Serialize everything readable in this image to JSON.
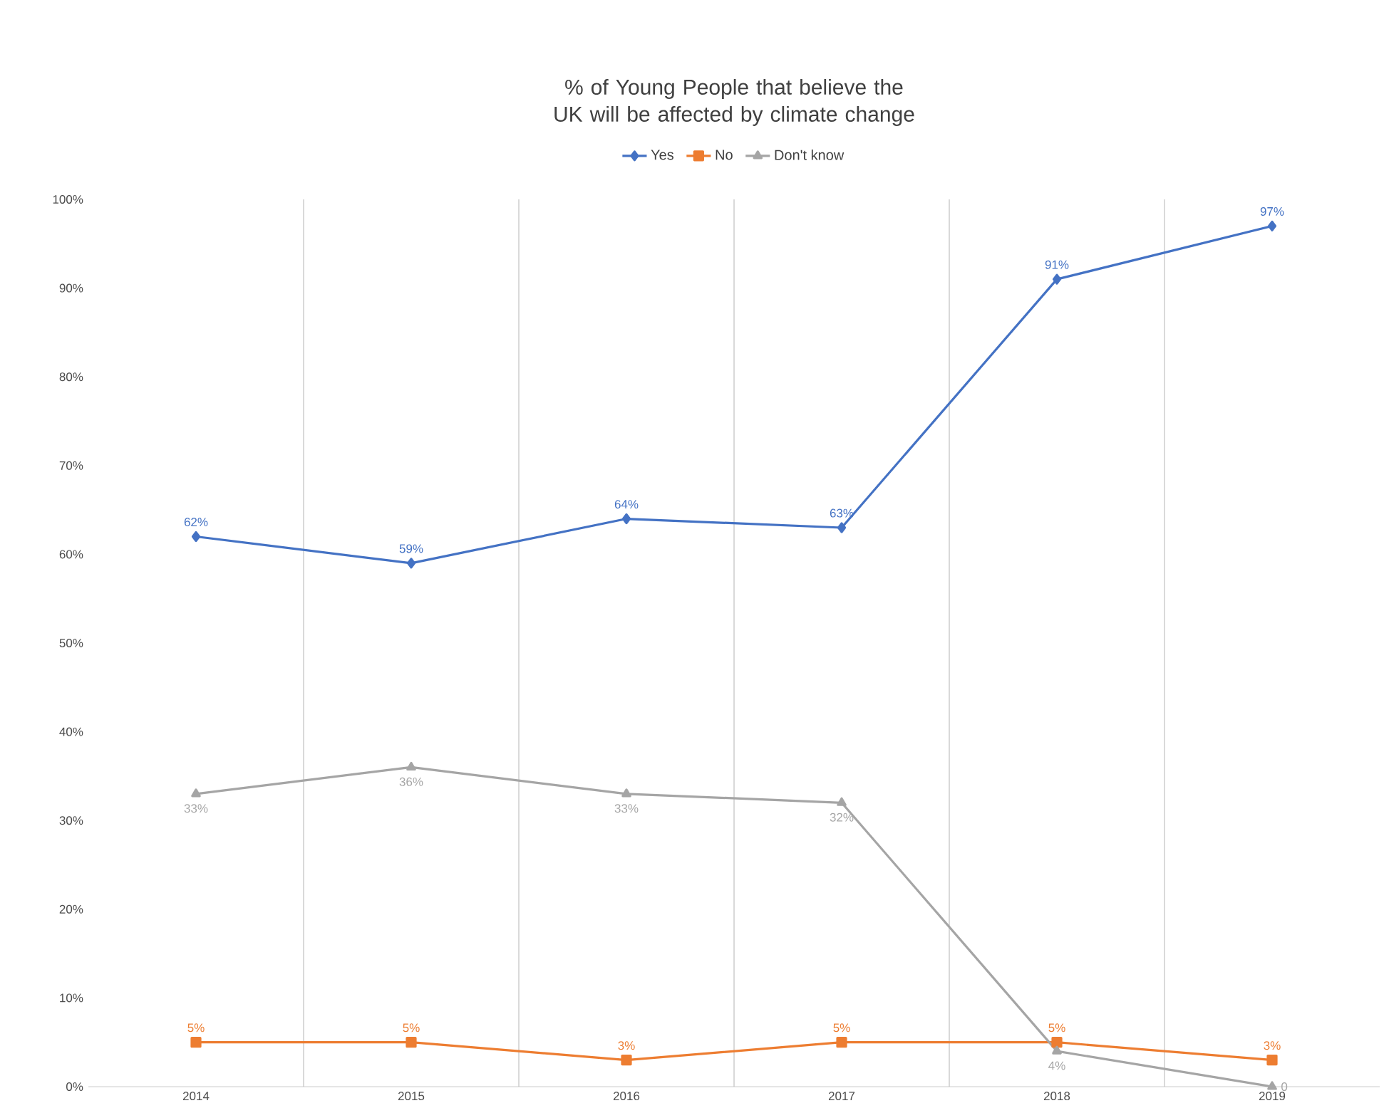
{
  "chart_data": {
    "type": "line",
    "title": "% of Young People that believe the UK will be affected by climate change",
    "categories": [
      "2014",
      "2015",
      "2016",
      "2017",
      "2018",
      "2019"
    ],
    "series": [
      {
        "name": "Yes",
        "color": "#4472c4",
        "marker": "diamond",
        "values": [
          62,
          59,
          64,
          63,
          91,
          97
        ],
        "value_labels": [
          "62%",
          "59%",
          "64%",
          "63%",
          "91%",
          "97%"
        ]
      },
      {
        "name": "No",
        "color": "#ed7d31",
        "marker": "square",
        "values": [
          5,
          5,
          3,
          5,
          5,
          3
        ],
        "value_labels": [
          "5%",
          "5%",
          "3%",
          "5%",
          "5%",
          "3%"
        ]
      },
      {
        "name": "Don't know",
        "color": "#a5a5a5",
        "marker": "triangle",
        "values": [
          33,
          36,
          33,
          32,
          4,
          0
        ],
        "value_labels": [
          "33%",
          "36%",
          "33%",
          "32%",
          "4%",
          "0"
        ]
      }
    ],
    "ylim": [
      0,
      100
    ],
    "yticks": [
      {
        "value": 0,
        "label": "0%"
      },
      {
        "value": 10,
        "label": "10%"
      },
      {
        "value": 20,
        "label": "20%"
      },
      {
        "value": 30,
        "label": "30%"
      },
      {
        "value": 40,
        "label": "40%"
      },
      {
        "value": 50,
        "label": "50%"
      },
      {
        "value": 60,
        "label": "60%"
      },
      {
        "value": 70,
        "label": "70%"
      },
      {
        "value": 80,
        "label": "80%"
      },
      {
        "value": 90,
        "label": "90%"
      },
      {
        "value": 100,
        "label": "100%"
      }
    ],
    "grid": "x",
    "legend": "top",
    "line_style": "solid"
  }
}
